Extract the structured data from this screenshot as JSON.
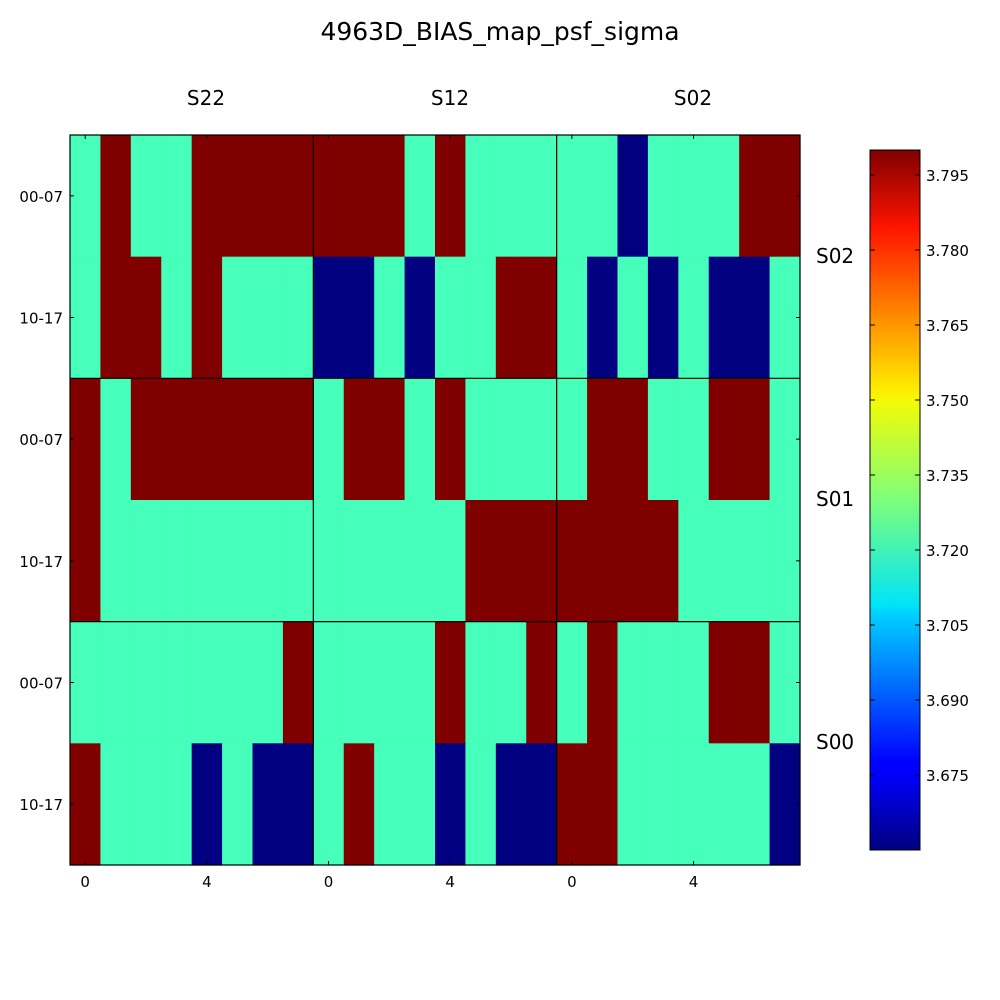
{
  "chart_data": {
    "type": "heatmap",
    "title": "4963D_BIAS_map_psf_sigma",
    "column_labels": [
      "S22",
      "S12",
      "S02"
    ],
    "row_labels": [
      "S02",
      "S01",
      "S00"
    ],
    "y_tick_labels": [
      "00-07",
      "10-17"
    ],
    "x_tick_labels": [
      "0",
      "4"
    ],
    "x_tick_values": [
      0,
      4
    ],
    "colormap": "jet",
    "vmin": 3.66,
    "vmax": 3.8,
    "colorbar_ticks": [
      "3.675",
      "3.690",
      "3.705",
      "3.720",
      "3.735",
      "3.750",
      "3.765",
      "3.780",
      "3.795"
    ],
    "colorbar_tick_values": [
      3.675,
      3.69,
      3.705,
      3.72,
      3.735,
      3.75,
      3.765,
      3.78,
      3.795
    ],
    "level_values": {
      "H": 3.8,
      "M": 3.722,
      "L": 3.66
    },
    "panels": [
      {
        "row": "S02",
        "col": "S22",
        "rows": [
          "MHMMHHHH",
          "MHHMHMMM"
        ]
      },
      {
        "row": "S02",
        "col": "S12",
        "rows": [
          "HHHMHMMM",
          "LLMLMMHH"
        ]
      },
      {
        "row": "S02",
        "col": "S02",
        "rows": [
          "MMLMMMHH",
          "MLMLMLLM"
        ]
      },
      {
        "row": "S01",
        "col": "S22",
        "rows": [
          "HMHHHHHH",
          "HMMMMMMM"
        ]
      },
      {
        "row": "S01",
        "col": "S12",
        "rows": [
          "MHHMHMMM",
          "MMMMMHHH"
        ]
      },
      {
        "row": "S01",
        "col": "S02",
        "rows": [
          "MHHMMHHM",
          "HHHHMMMM"
        ]
      },
      {
        "row": "S00",
        "col": "S22",
        "rows": [
          "MMMMMMMH",
          "HMMMLMLL"
        ]
      },
      {
        "row": "S00",
        "col": "S12",
        "rows": [
          "MMMMHMMH",
          "MHMMLMLL"
        ]
      },
      {
        "row": "S00",
        "col": "S02",
        "rows": [
          "MHMMMHHM",
          "HHMMMMML"
        ]
      }
    ]
  }
}
